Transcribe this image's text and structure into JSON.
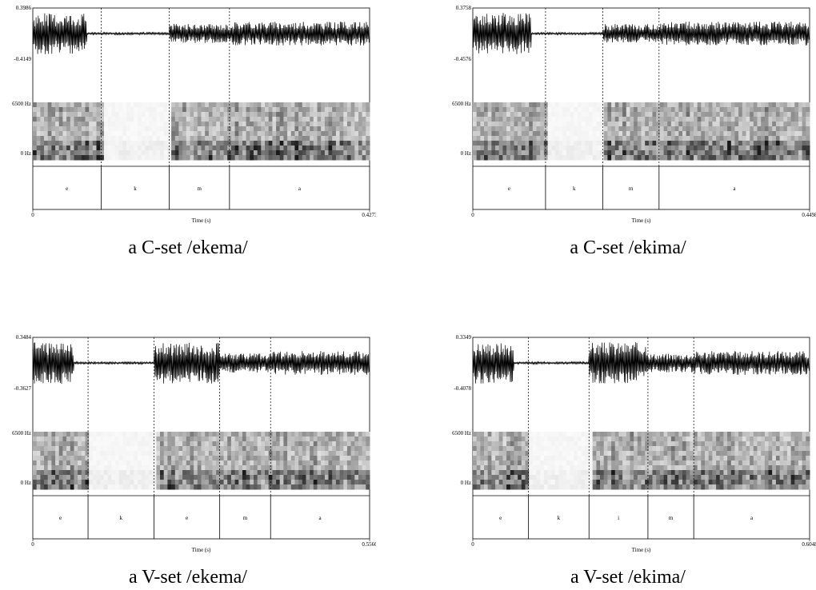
{
  "panels": [
    {
      "caption": "a C-set /ekema/",
      "wave_max": "0.3986",
      "wave_min": "-0.4149",
      "freq_top": "6500 Hz",
      "freq_bottom": "0 Hz",
      "time_start": "0",
      "time_end": "0.4273",
      "time_label": "Time (s)",
      "segments": [
        "e",
        "k",
        "m",
        "a"
      ],
      "boundaries": [
        0.203,
        0.405,
        0.584
      ]
    },
    {
      "caption": "a C-set /ekima/",
      "wave_max": "0.3758",
      "wave_min": "-0.4576",
      "freq_top": "6500 Hz",
      "freq_bottom": "0 Hz",
      "time_start": "0",
      "time_end": "0.4498",
      "time_label": "Time (s)",
      "segments": [
        "e",
        "k",
        "m",
        "a"
      ],
      "boundaries": [
        0.216,
        0.386,
        0.553
      ]
    },
    {
      "caption": "a V-set /ekema/",
      "wave_max": "0.3484",
      "wave_min": "-0.3627",
      "freq_top": "6500 Hz",
      "freq_bottom": "0 Hz",
      "time_start": "0",
      "time_end": "0.5566",
      "time_label": "Time (s)",
      "segments": [
        "e",
        "k",
        "e",
        "m",
        "a"
      ],
      "boundaries": [
        0.164,
        0.36,
        0.555,
        0.706
      ]
    },
    {
      "caption": "a V-set /ekima/",
      "wave_max": "0.3349",
      "wave_min": "-0.4078",
      "freq_top": "6500 Hz",
      "freq_bottom": "0 Hz",
      "time_start": "0",
      "time_end": "0.6048",
      "time_label": "Time (s)",
      "segments": [
        "e",
        "k",
        "i",
        "m",
        "a"
      ],
      "boundaries": [
        0.165,
        0.345,
        0.52,
        0.656
      ]
    }
  ]
}
